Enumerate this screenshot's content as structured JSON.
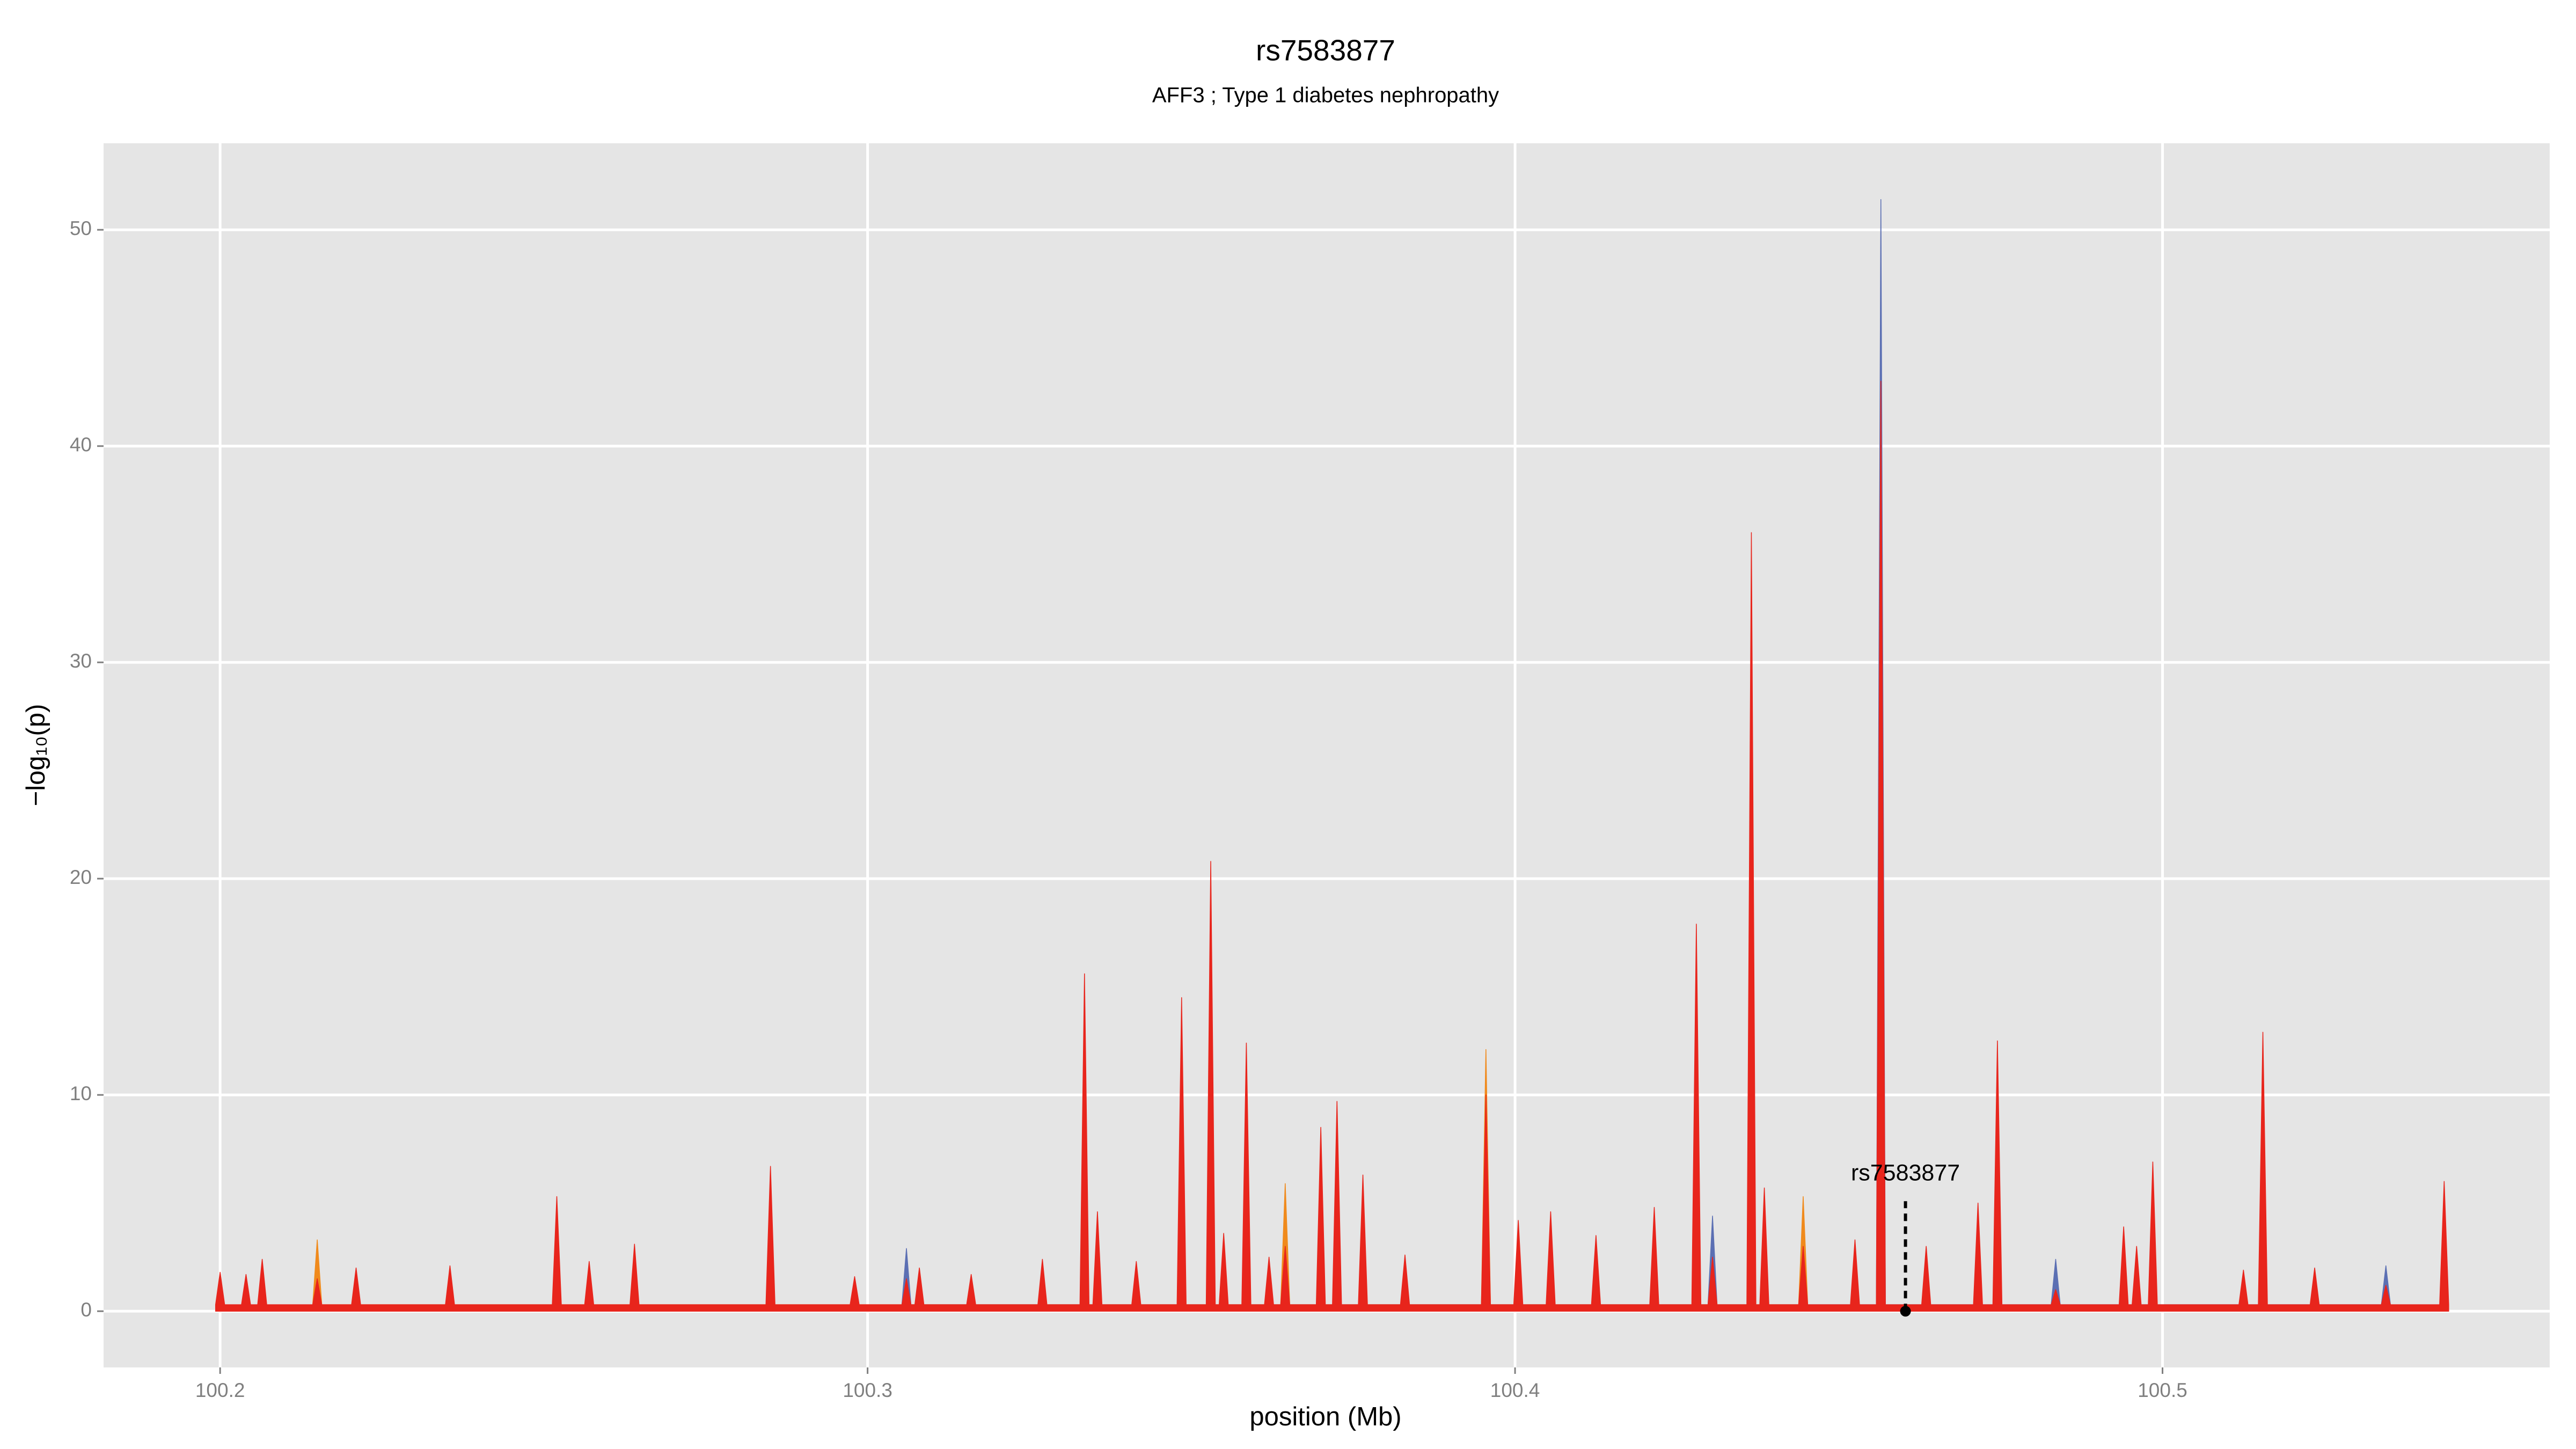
{
  "chart_data": {
    "type": "area",
    "title": "rs7583877",
    "subtitle": "AFF3 ; Type 1 diabetes nephropathy",
    "x_label": "position (Mb)",
    "y_label": "−log₁₀(p)",
    "xlim": [
      100.182,
      100.5598
    ],
    "ylim": [
      -2.6,
      54
    ],
    "xticks": [
      100.2,
      100.3,
      100.4,
      100.5
    ],
    "yticks": [
      0,
      10,
      20,
      30,
      40,
      50
    ],
    "grid": true,
    "annotation": {
      "text": "rs7583877",
      "x": 100.4603,
      "y": 0
    },
    "series": [
      {
        "color": "#5b6fb3",
        "x": [
          100.3053,
          100.306,
          100.3067,
          100.4298,
          100.4305,
          100.4312,
          100.4558,
          100.4565,
          100.4572,
          100.4828,
          100.4835,
          100.4842,
          100.5338,
          100.5345,
          100.5352
        ],
        "values": [
          0.3,
          2.9,
          0.3,
          0.3,
          4.4,
          0.3,
          0.3,
          51.4,
          0.3,
          0.3,
          2.4,
          0.3,
          0.3,
          2.1,
          0.3
        ]
      },
      {
        "color": "#f08a1c",
        "x": [
          100.2143,
          100.215,
          100.2157,
          100.3638,
          100.3645,
          100.3652,
          100.3948,
          100.3955,
          100.3962,
          100.4438,
          100.4445,
          100.4452
        ],
        "values": [
          0.3,
          3.3,
          0.3,
          0.3,
          5.9,
          0.3,
          0.3,
          12.1,
          0.3,
          0.3,
          5.3,
          0.3
        ]
      },
      {
        "color": "#e8251c",
        "x": [
          100.1993,
          100.2,
          100.2007,
          100.2033,
          100.204,
          100.2047,
          100.2058,
          100.2065,
          100.2072,
          100.2143,
          100.215,
          100.2157,
          100.2203,
          100.221,
          100.2217,
          100.2348,
          100.2355,
          100.2362,
          100.2513,
          100.252,
          100.2527,
          100.2563,
          100.257,
          100.2577,
          100.2633,
          100.264,
          100.2647,
          100.2843,
          100.285,
          100.2857,
          100.2973,
          100.298,
          100.2987,
          100.3053,
          100.306,
          100.3067,
          100.3073,
          100.308,
          100.3087,
          100.3153,
          100.316,
          100.3167,
          100.3263,
          100.327,
          100.3277,
          100.3328,
          100.3335,
          100.3342,
          100.3348,
          100.3355,
          100.3362,
          100.3408,
          100.3415,
          100.3422,
          100.3478,
          100.3485,
          100.3492,
          100.3523,
          100.353,
          100.3537,
          100.3543,
          100.355,
          100.3557,
          100.3578,
          100.3585,
          100.3592,
          100.3613,
          100.362,
          100.3627,
          100.3638,
          100.3645,
          100.3652,
          100.3693,
          100.37,
          100.3707,
          100.3718,
          100.3725,
          100.3732,
          100.3758,
          100.3765,
          100.3772,
          100.3823,
          100.383,
          100.3837,
          100.3948,
          100.3955,
          100.3962,
          100.3998,
          100.4005,
          100.4012,
          100.4048,
          100.4055,
          100.4062,
          100.4118,
          100.4125,
          100.4132,
          100.4208,
          100.4215,
          100.4222,
          100.4273,
          100.428,
          100.4287,
          100.4298,
          100.4305,
          100.4312,
          100.4358,
          100.4365,
          100.4372,
          100.4378,
          100.4385,
          100.4392,
          100.4438,
          100.4445,
          100.4452,
          100.4518,
          100.4525,
          100.4532,
          100.4558,
          100.4565,
          100.4572,
          100.4628,
          100.4635,
          100.4642,
          100.4708,
          100.4715,
          100.4722,
          100.4738,
          100.4745,
          100.4752,
          100.4828,
          100.4835,
          100.4842,
          100.4933,
          100.494,
          100.4947,
          100.4953,
          100.496,
          100.4967,
          100.4978,
          100.4985,
          100.4992,
          100.5118,
          100.5125,
          100.5132,
          100.5148,
          100.5155,
          100.5162,
          100.5228,
          100.5235,
          100.5242,
          100.5338,
          100.5345,
          100.5352,
          100.5428,
          100.5435,
          100.5442
        ],
        "values": [
          0.3,
          1.8,
          0.3,
          0.3,
          1.7,
          0.3,
          0.3,
          2.4,
          0.3,
          0.3,
          1.5,
          0.3,
          0.3,
          2.0,
          0.3,
          0.3,
          2.1,
          0.3,
          0.3,
          5.3,
          0.3,
          0.3,
          2.3,
          0.3,
          0.3,
          3.1,
          0.3,
          0.3,
          6.7,
          0.3,
          0.3,
          1.6,
          0.3,
          0.3,
          1.5,
          0.3,
          0.3,
          2.0,
          0.3,
          0.3,
          1.7,
          0.3,
          0.3,
          2.4,
          0.3,
          0.3,
          15.6,
          0.3,
          0.3,
          4.6,
          0.3,
          0.3,
          2.3,
          0.3,
          0.3,
          14.5,
          0.3,
          0.3,
          20.8,
          0.3,
          0.3,
          3.6,
          0.3,
          0.3,
          12.4,
          0.3,
          0.3,
          2.5,
          0.3,
          0.3,
          3.0,
          0.3,
          0.3,
          8.5,
          0.3,
          0.3,
          9.7,
          0.3,
          0.3,
          6.3,
          0.3,
          0.3,
          2.6,
          0.3,
          0.3,
          10.0,
          0.3,
          0.3,
          4.2,
          0.3,
          0.3,
          4.6,
          0.3,
          0.3,
          3.5,
          0.3,
          0.3,
          4.8,
          0.3,
          0.3,
          17.9,
          0.3,
          0.3,
          2.5,
          0.3,
          0.3,
          36.0,
          0.3,
          0.3,
          5.7,
          0.3,
          0.3,
          3.0,
          0.3,
          0.3,
          3.3,
          0.3,
          0.3,
          43.0,
          0.3,
          0.3,
          3.0,
          0.3,
          0.3,
          5.0,
          0.3,
          0.3,
          12.5,
          0.3,
          0.3,
          1.0,
          0.3,
          0.3,
          3.9,
          0.3,
          0.3,
          3.0,
          0.3,
          0.3,
          6.9,
          0.3,
          0.3,
          1.9,
          0.3,
          0.3,
          12.9,
          0.3,
          0.3,
          2.0,
          0.3,
          0.3,
          1.2,
          0.3,
          0.3,
          6.0,
          0.3
        ]
      }
    ]
  }
}
